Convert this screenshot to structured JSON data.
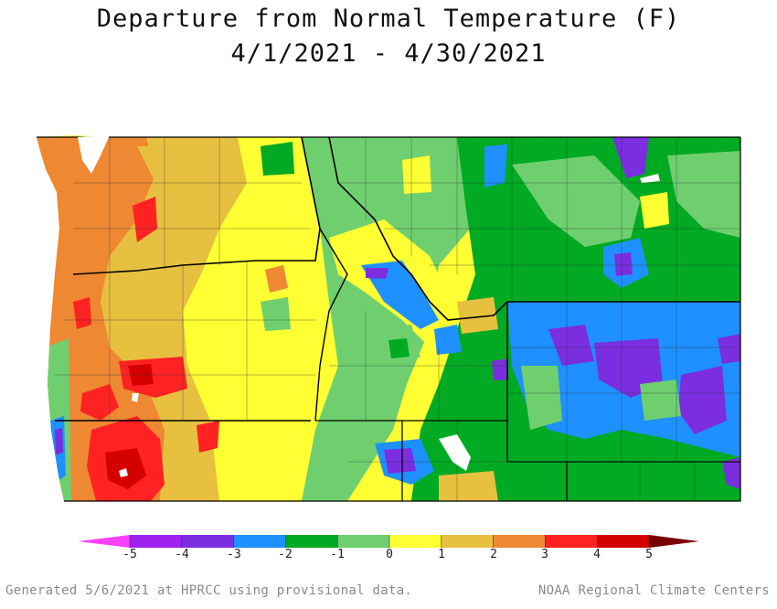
{
  "title": "Departure from Normal Temperature (F)",
  "date_range": "4/1/2021 - 4/30/2021",
  "legend": {
    "ticks": [
      "-5",
      "-4",
      "-3",
      "-2",
      "-1",
      "0",
      "1",
      "2",
      "3",
      "4",
      "5"
    ],
    "colors": {
      "below_-5": "#ff40ff",
      "-5_-4": "#a020f0",
      "-4_-3": "#7a2ee0",
      "-3_-2": "#1e90ff",
      "-2_-1": "#00aa22",
      "-1_0": "#6fcf6f",
      "0_1": "#ffff33",
      "1_2": "#e8c040",
      "2_3": "#ee8833",
      "3_4": "#ff2222",
      "4_5": "#d40000",
      "above_5": "#7a0000"
    }
  },
  "footer": {
    "left": "Generated 5/6/2021 at HPRCC using provisional data.",
    "right": "NOAA Regional Climate Centers"
  }
}
